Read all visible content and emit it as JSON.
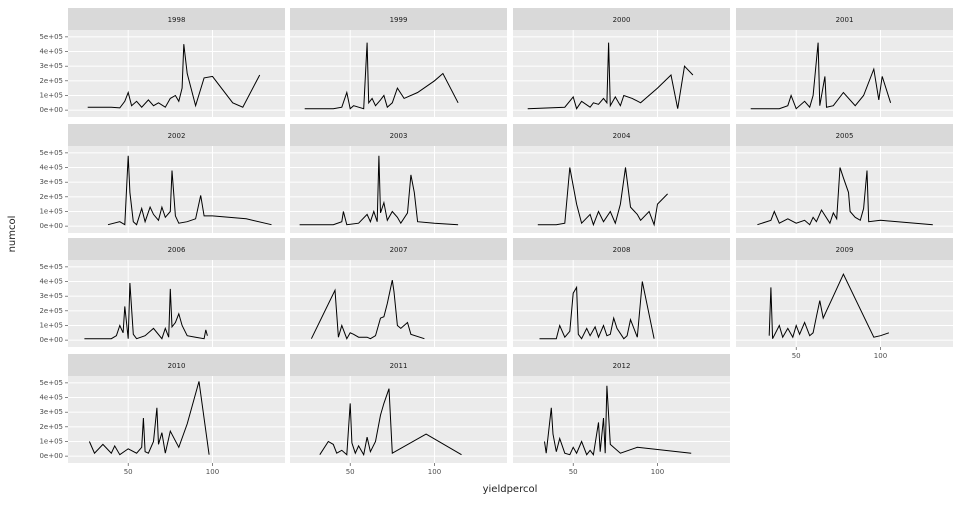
{
  "chart_data": {
    "type": "line",
    "x_label": "yieldpercol",
    "y_label": "numcol",
    "color": "#000000",
    "grid": true,
    "xlim": [
      14.3,
      143
    ],
    "ylim": [
      -47000,
      547000
    ],
    "xticks": [
      50,
      100
    ],
    "yticks": [
      {
        "value": 0,
        "label": "0e+00"
      },
      {
        "value": 100000,
        "label": "1e+05"
      },
      {
        "value": 200000,
        "label": "2e+05"
      },
      {
        "value": 300000,
        "label": "3e+05"
      },
      {
        "value": 400000,
        "label": "4e+05"
      },
      {
        "value": 500000,
        "label": "5e+05"
      }
    ],
    "facets": [
      {
        "title": "1998",
        "x": [
          26,
          40,
          45,
          48,
          50,
          52,
          55,
          58,
          62,
          65,
          68,
          72,
          75,
          78,
          80,
          82,
          83,
          85,
          90,
          95,
          100,
          112,
          118,
          128
        ],
        "values": [
          20000,
          20000,
          15000,
          60000,
          120000,
          30000,
          60000,
          20000,
          70000,
          30000,
          50000,
          20000,
          80000,
          100000,
          60000,
          150000,
          450000,
          250000,
          30000,
          220000,
          230000,
          50000,
          20000,
          240000
        ]
      },
      {
        "title": "1999",
        "x": [
          23,
          40,
          45,
          48,
          50,
          52,
          55,
          58,
          60,
          61,
          63,
          65,
          68,
          70,
          72,
          75,
          78,
          82,
          90,
          100,
          105,
          114
        ],
        "values": [
          10000,
          10000,
          20000,
          120000,
          10000,
          30000,
          20000,
          10000,
          460000,
          50000,
          80000,
          30000,
          70000,
          100000,
          20000,
          50000,
          150000,
          80000,
          120000,
          200000,
          250000,
          50000
        ]
      },
      {
        "title": "2000",
        "x": [
          23,
          45,
          50,
          52,
          55,
          60,
          62,
          65,
          68,
          70,
          71,
          72,
          75,
          78,
          80,
          85,
          90,
          100,
          108,
          112,
          116,
          121
        ],
        "values": [
          10000,
          20000,
          90000,
          10000,
          60000,
          20000,
          50000,
          40000,
          80000,
          50000,
          460000,
          30000,
          90000,
          30000,
          100000,
          80000,
          50000,
          150000,
          240000,
          10000,
          300000,
          240000
        ]
      },
      {
        "title": "2001",
        "x": [
          23,
          40,
          45,
          47,
          50,
          55,
          58,
          60,
          63,
          64,
          67,
          68,
          72,
          78,
          85,
          90,
          96,
          99,
          101,
          106
        ],
        "values": [
          10000,
          10000,
          30000,
          100000,
          10000,
          60000,
          20000,
          100000,
          460000,
          30000,
          230000,
          20000,
          30000,
          120000,
          30000,
          100000,
          280000,
          70000,
          230000,
          50000
        ]
      },
      {
        "title": "2002",
        "x": [
          38,
          45,
          48,
          50,
          51,
          53,
          55,
          58,
          60,
          63,
          65,
          68,
          70,
          72,
          75,
          76,
          78,
          80,
          85,
          90,
          93,
          95,
          100,
          120,
          135
        ],
        "values": [
          10000,
          30000,
          10000,
          480000,
          230000,
          30000,
          10000,
          120000,
          30000,
          130000,
          80000,
          40000,
          130000,
          60000,
          100000,
          380000,
          70000,
          20000,
          30000,
          50000,
          210000,
          70000,
          70000,
          50000,
          10000
        ]
      },
      {
        "title": "2003",
        "x": [
          20,
          40,
          45,
          46,
          48,
          55,
          60,
          62,
          64,
          66,
          67,
          68,
          70,
          72,
          75,
          78,
          80,
          84,
          86,
          88,
          90,
          100,
          114
        ],
        "values": [
          10000,
          10000,
          30000,
          100000,
          10000,
          20000,
          80000,
          30000,
          100000,
          30000,
          480000,
          90000,
          160000,
          40000,
          100000,
          60000,
          20000,
          90000,
          350000,
          230000,
          30000,
          20000,
          10000
        ]
      },
      {
        "title": "2004",
        "x": [
          29,
          40,
          45,
          48,
          52,
          55,
          60,
          62,
          65,
          68,
          72,
          75,
          78,
          81,
          84,
          88,
          90,
          95,
          98,
          100,
          106
        ],
        "values": [
          10000,
          10000,
          20000,
          400000,
          150000,
          20000,
          80000,
          10000,
          100000,
          30000,
          100000,
          20000,
          150000,
          400000,
          130000,
          80000,
          40000,
          100000,
          10000,
          150000,
          220000
        ]
      },
      {
        "title": "2005",
        "x": [
          27,
          35,
          37,
          40,
          45,
          50,
          55,
          58,
          60,
          62,
          65,
          70,
          72,
          74,
          76,
          78,
          81,
          82,
          85,
          88,
          90,
          92,
          93,
          100,
          131
        ],
        "values": [
          10000,
          40000,
          100000,
          20000,
          50000,
          20000,
          40000,
          10000,
          60000,
          30000,
          110000,
          20000,
          90000,
          50000,
          400000,
          330000,
          230000,
          100000,
          60000,
          40000,
          120000,
          380000,
          30000,
          40000,
          10000
        ]
      },
      {
        "title": "2006",
        "x": [
          24,
          40,
          43,
          45,
          47,
          48,
          50,
          51,
          53,
          55,
          60,
          65,
          70,
          72,
          74,
          75,
          76,
          78,
          80,
          82,
          85,
          90,
          95,
          96,
          97
        ],
        "values": [
          10000,
          10000,
          30000,
          100000,
          50000,
          230000,
          10000,
          390000,
          40000,
          10000,
          30000,
          80000,
          10000,
          80000,
          20000,
          350000,
          90000,
          120000,
          180000,
          100000,
          30000,
          20000,
          10000,
          70000,
          30000
        ]
      },
      {
        "title": "2007",
        "x": [
          27,
          41,
          43,
          45,
          48,
          50,
          52,
          55,
          60,
          62,
          65,
          68,
          70,
          72,
          75,
          76,
          78,
          80,
          84,
          86,
          94
        ],
        "values": [
          10000,
          340000,
          20000,
          100000,
          10000,
          50000,
          40000,
          20000,
          20000,
          10000,
          30000,
          150000,
          160000,
          250000,
          410000,
          330000,
          100000,
          80000,
          120000,
          40000,
          10000
        ]
      },
      {
        "title": "2008",
        "x": [
          30,
          40,
          42,
          45,
          48,
          50,
          52,
          53,
          55,
          58,
          60,
          63,
          65,
          68,
          70,
          72,
          74,
          76,
          80,
          82,
          84,
          88,
          91,
          98
        ],
        "values": [
          10000,
          10000,
          100000,
          20000,
          60000,
          320000,
          360000,
          40000,
          10000,
          80000,
          30000,
          90000,
          20000,
          100000,
          30000,
          40000,
          150000,
          80000,
          10000,
          30000,
          140000,
          20000,
          400000,
          10000
        ]
      },
      {
        "title": "2009",
        "x": [
          34,
          35,
          36,
          40,
          42,
          45,
          48,
          50,
          52,
          55,
          58,
          60,
          62,
          64,
          66,
          68,
          72,
          78,
          96,
          100,
          105
        ],
        "values": [
          30000,
          360000,
          10000,
          100000,
          20000,
          80000,
          20000,
          100000,
          40000,
          120000,
          30000,
          50000,
          160000,
          270000,
          150000,
          200000,
          300000,
          450000,
          20000,
          30000,
          50000
        ]
      },
      {
        "title": "2010",
        "x": [
          27,
          30,
          35,
          40,
          42,
          45,
          50,
          55,
          58,
          59,
          60,
          62,
          65,
          67,
          68,
          70,
          72,
          75,
          80,
          85,
          92,
          98
        ],
        "values": [
          100000,
          20000,
          80000,
          20000,
          70000,
          10000,
          50000,
          20000,
          60000,
          260000,
          30000,
          20000,
          100000,
          330000,
          80000,
          160000,
          20000,
          170000,
          60000,
          220000,
          510000,
          10000
        ]
      },
      {
        "title": "2011",
        "x": [
          32,
          37,
          40,
          42,
          45,
          48,
          50,
          51,
          53,
          55,
          58,
          60,
          62,
          65,
          68,
          70,
          73,
          75,
          95,
          116
        ],
        "values": [
          10000,
          100000,
          80000,
          20000,
          40000,
          10000,
          360000,
          90000,
          20000,
          70000,
          10000,
          130000,
          30000,
          100000,
          280000,
          360000,
          460000,
          20000,
          150000,
          10000
        ]
      },
      {
        "title": "2012",
        "x": [
          33,
          34,
          37,
          38,
          40,
          42,
          45,
          48,
          50,
          52,
          55,
          58,
          60,
          62,
          65,
          66,
          68,
          69,
          70,
          72,
          78,
          88,
          120
        ],
        "values": [
          100000,
          20000,
          330000,
          150000,
          30000,
          120000,
          20000,
          10000,
          60000,
          20000,
          100000,
          10000,
          40000,
          10000,
          230000,
          30000,
          260000,
          20000,
          480000,
          80000,
          20000,
          60000,
          20000
        ]
      }
    ]
  }
}
